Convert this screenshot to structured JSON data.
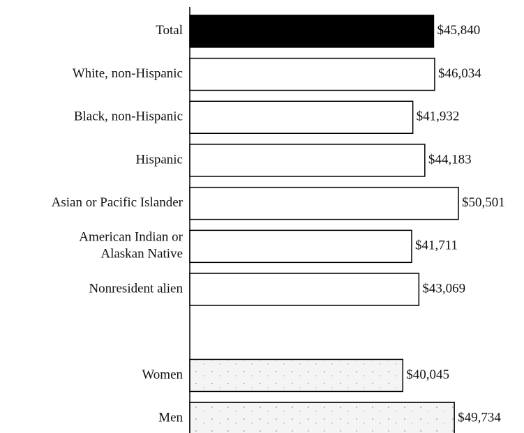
{
  "chart_data": {
    "type": "barh",
    "categories": [
      "Total",
      "White,  non-Hispanic",
      "Black,  non-Hispanic",
      "Hispanic",
      "Asian or Pacific Islander",
      "American Indian or\nAlaskan Native",
      "Nonresident alien",
      null,
      "Women",
      "Men"
    ],
    "values": [
      45840,
      46034,
      41932,
      44183,
      50501,
      41711,
      43069,
      null,
      40045,
      49734
    ],
    "value_labels": [
      "$45,840",
      "$46,034",
      "$41,932",
      "$44,183",
      "$50,501",
      "$41,711",
      "$43,069",
      null,
      "$40,045",
      "$49,734"
    ],
    "colors": [
      "#000000",
      "#ffffff",
      "#ffffff",
      "#ffffff",
      "#ffffff",
      "#ffffff",
      "#ffffff",
      null,
      "#f2f2f2",
      "#f2f2f2"
    ]
  }
}
